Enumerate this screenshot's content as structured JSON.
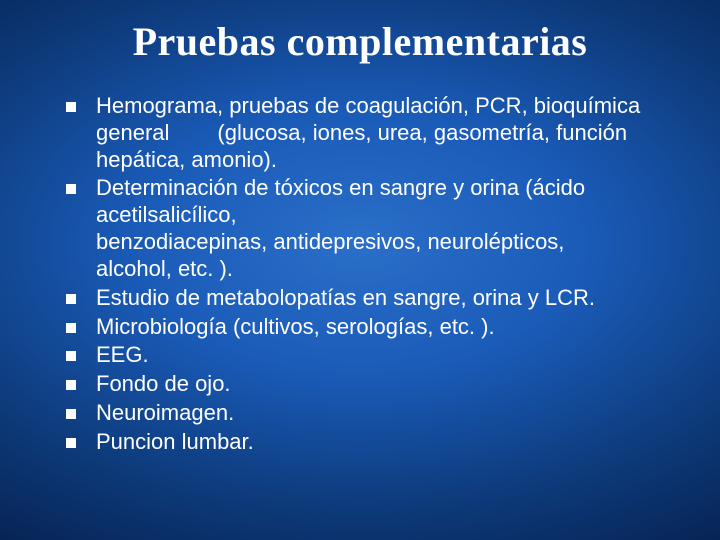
{
  "slide": {
    "title": "Pruebas complementarias",
    "title_fontsize": 40,
    "title_color": "#ffffff",
    "body_fontsize": 22,
    "body_color": "#ffffff",
    "body_lineheight": 1.22,
    "bullet_color": "#ffffff",
    "bullet_size": 10,
    "background_gradient": {
      "type": "radial",
      "center_color": "#2a6fc9",
      "mid_color": "#1a5bb8",
      "outer_color": "#0d3a7a",
      "edge_color": "#062150"
    },
    "items": [
      {
        "line1": " Hemograma, pruebas de coagulación, PCR, bioquímica",
        "line2_prefix": "general",
        "line2_rest": "(glucosa, iones, urea, gasometría, función",
        "line3": "hepática, amonio)."
      },
      {
        "line1": "Determinación de tóxicos en sangre y orina (ácido",
        "line2": "acetilsalicílico,",
        "line3": " benzodiacepinas, antidepresivos, neurolépticos,",
        "line4": "alcohol, etc. )."
      },
      {
        "line1": "Estudio de metabolopatías en sangre, orina y LCR."
      },
      {
        "line1": " Microbiología (cultivos, serologías, etc. )."
      },
      {
        "line1": "EEG."
      },
      {
        "line1": "Fondo de ojo."
      },
      {
        "line1": "Neuroimagen."
      },
      {
        "line1": "Puncion lumbar."
      }
    ]
  }
}
